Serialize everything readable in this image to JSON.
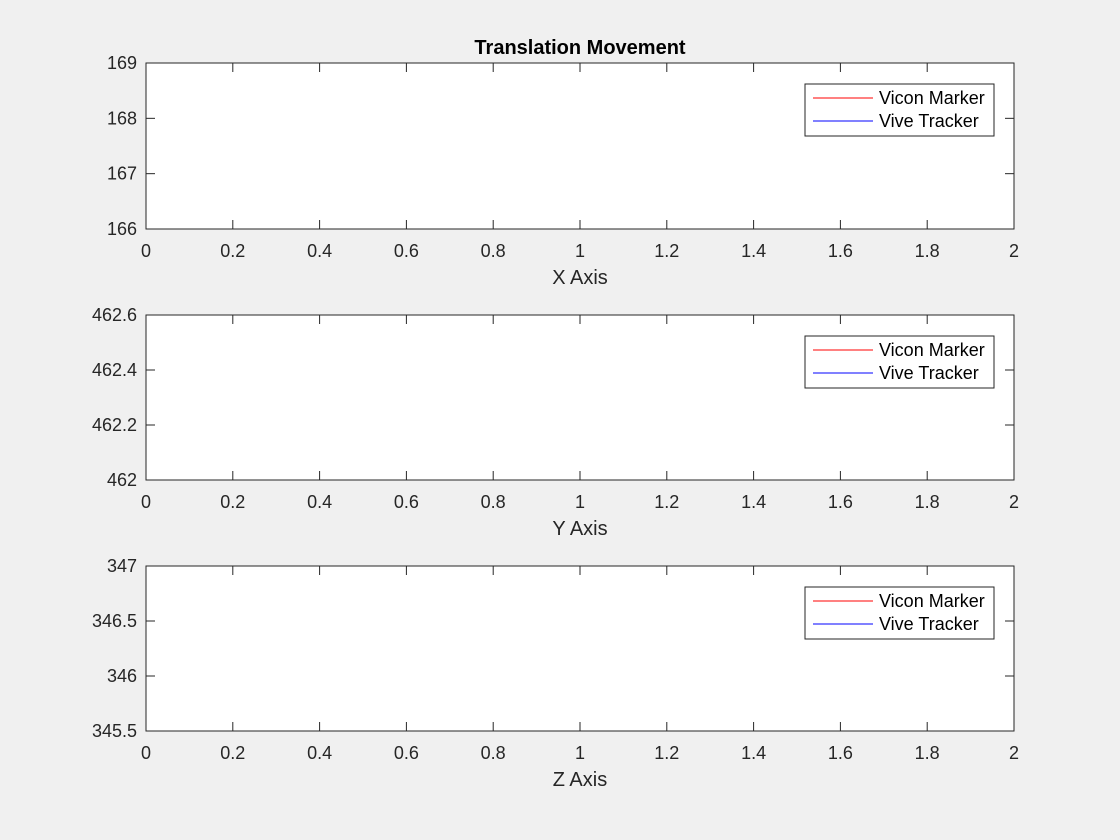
{
  "figure": {
    "title": "Translation Movement",
    "background": "#f0f0f0"
  },
  "chart_data": [
    {
      "type": "line",
      "xlabel": "X Axis",
      "ylabel": "",
      "xlim": [
        0,
        2
      ],
      "ylim": [
        166,
        169
      ],
      "xticks": [
        "0",
        "0.2",
        "0.4",
        "0.6",
        "0.8",
        "1",
        "1.2",
        "1.4",
        "1.6",
        "1.8",
        "2"
      ],
      "yticks": [
        "166",
        "167",
        "168",
        "169"
      ],
      "legend_position": "top-right",
      "series": [
        {
          "name": "Vicon Marker",
          "color": "#ff0000",
          "x": [],
          "values": []
        },
        {
          "name": "Vive Tracker",
          "color": "#0000ff",
          "x": [],
          "values": []
        }
      ]
    },
    {
      "type": "line",
      "xlabel": "Y Axis",
      "ylabel": "",
      "xlim": [
        0,
        2
      ],
      "ylim": [
        462,
        462.6
      ],
      "xticks": [
        "0",
        "0.2",
        "0.4",
        "0.6",
        "0.8",
        "1",
        "1.2",
        "1.4",
        "1.6",
        "1.8",
        "2"
      ],
      "yticks": [
        "462",
        "462.2",
        "462.4",
        "462.6"
      ],
      "legend_position": "top-right",
      "series": [
        {
          "name": "Vicon Marker",
          "color": "#ff0000",
          "x": [],
          "values": []
        },
        {
          "name": "Vive Tracker",
          "color": "#0000ff",
          "x": [],
          "values": []
        }
      ]
    },
    {
      "type": "line",
      "xlabel": "Z Axis",
      "ylabel": "",
      "xlim": [
        0,
        2
      ],
      "ylim": [
        345.5,
        347
      ],
      "xticks": [
        "0",
        "0.2",
        "0.4",
        "0.6",
        "0.8",
        "1",
        "1.2",
        "1.4",
        "1.6",
        "1.8",
        "2"
      ],
      "yticks": [
        "345.5",
        "346",
        "346.5",
        "347"
      ],
      "legend_position": "top-right",
      "series": [
        {
          "name": "Vicon Marker",
          "color": "#ff0000",
          "x": [],
          "values": []
        },
        {
          "name": "Vive Tracker",
          "color": "#0000ff",
          "x": [],
          "values": []
        }
      ]
    }
  ]
}
